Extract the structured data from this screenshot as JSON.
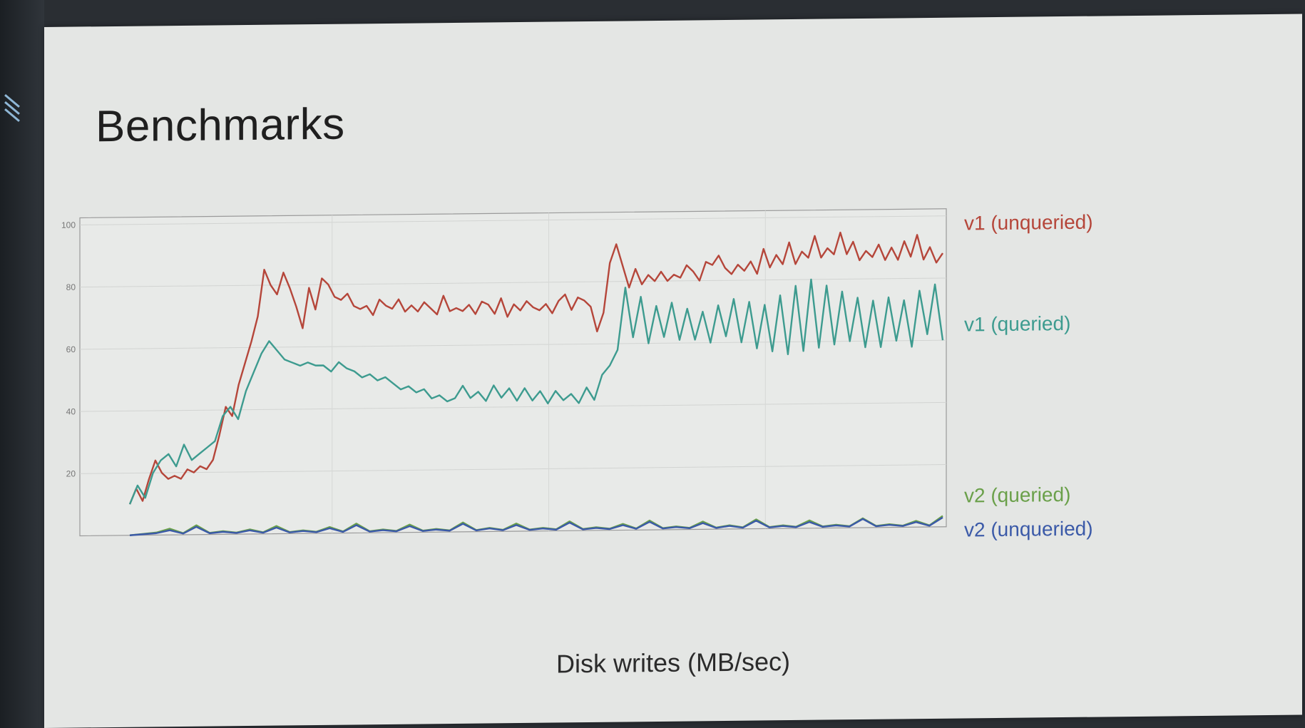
{
  "slide": {
    "title": "Benchmarks",
    "caption": "Disk writes (MB/sec)"
  },
  "chart_data": {
    "type": "line",
    "title": "Benchmarks",
    "xlabel": "Disk writes (MB/sec)",
    "ylabel": "",
    "ylim": [
      0,
      100
    ],
    "y_ticks": [
      "100",
      "80",
      "60",
      "40",
      "20"
    ],
    "grid": true,
    "legend_placement": "right",
    "series": [
      {
        "name": "v1 (unqueried)",
        "color": "#b5463a",
        "values": [
          10,
          15,
          11,
          18,
          24,
          20,
          18,
          19,
          18,
          21,
          20,
          22,
          21,
          24,
          32,
          41,
          38,
          48,
          55,
          62,
          70,
          85,
          80,
          77,
          84,
          79,
          73,
          66,
          79,
          72,
          82,
          80,
          76,
          75,
          77,
          73,
          72,
          73,
          70,
          75,
          73,
          72,
          75,
          71,
          73,
          71,
          74,
          72,
          70,
          76,
          71,
          72,
          71,
          73,
          70,
          74,
          73,
          70,
          75,
          69,
          73,
          71,
          74,
          72,
          71,
          73,
          70,
          74,
          76,
          71,
          75,
          74,
          72,
          64,
          70,
          86,
          92,
          85,
          78,
          84,
          79,
          82,
          80,
          83,
          80,
          82,
          81,
          85,
          83,
          80,
          86,
          85,
          88,
          84,
          82,
          85,
          83,
          86,
          82,
          90,
          84,
          88,
          85,
          92,
          85,
          89,
          87,
          94,
          87,
          90,
          88,
          95,
          88,
          92,
          86,
          89,
          87,
          91,
          86,
          90,
          86,
          92,
          87,
          94,
          86,
          90,
          85,
          88
        ],
        "point_interval_note": ""
      },
      {
        "name": "v1 (queried)",
        "color": "#3d9b8f",
        "values": [
          10,
          16,
          12,
          20,
          24,
          26,
          22,
          29,
          24,
          26,
          28,
          30,
          38,
          41,
          37,
          46,
          52,
          58,
          62,
          59,
          56,
          55,
          54,
          55,
          54,
          54,
          52,
          55,
          53,
          52,
          50,
          51,
          49,
          50,
          48,
          46,
          47,
          45,
          46,
          43,
          44,
          42,
          43,
          47,
          43,
          45,
          42,
          47,
          43,
          46,
          42,
          46,
          42,
          45,
          41,
          45,
          42,
          44,
          41,
          46,
          42,
          50,
          53,
          58,
          78,
          62,
          75,
          60,
          72,
          62,
          73,
          61,
          71,
          61,
          70,
          60,
          72,
          62,
          74,
          60,
          73,
          58,
          72,
          57,
          75,
          56,
          78,
          57,
          80,
          58,
          78,
          59,
          76,
          60,
          74,
          58,
          73,
          58,
          74,
          60,
          73,
          58,
          76,
          62,
          78,
          60
        ],
        "point_interval_note": ""
      },
      {
        "name": "v2 (queried)",
        "color": "#6aa04a",
        "values": [
          0,
          0.4,
          0.8,
          2,
          0.5,
          3,
          0.5,
          1,
          0.5,
          1.5,
          0.5,
          2.5,
          0.5,
          1,
          0.5,
          2,
          0.5,
          3,
          0.5,
          1,
          0.5,
          2.5,
          0.5,
          1,
          0.5,
          3,
          0.5,
          1.2,
          0.5,
          2.5,
          0.5,
          1,
          0.5,
          3,
          0.5,
          1,
          0.5,
          2,
          0.5,
          3,
          0.5,
          1,
          0.5,
          2.5,
          0.5,
          1.2,
          0.5,
          3,
          0.5,
          1,
          0.5,
          2.5,
          0.5,
          1,
          0.5,
          3,
          0.5,
          1,
          0.5,
          2,
          0.5,
          3.5
        ],
        "point_interval_note": ""
      },
      {
        "name": "v2 (unqueried)",
        "color": "#3b5aa8",
        "values": [
          0,
          0.3,
          0.6,
          1.5,
          0.4,
          2.5,
          0.4,
          0.8,
          0.4,
          1.2,
          0.4,
          2,
          0.4,
          0.8,
          0.4,
          1.6,
          0.4,
          2.5,
          0.4,
          0.8,
          0.4,
          2,
          0.4,
          0.8,
          0.4,
          2.6,
          0.4,
          1,
          0.4,
          2,
          0.4,
          0.8,
          0.4,
          2.6,
          0.4,
          0.8,
          0.4,
          1.6,
          0.4,
          2.6,
          0.4,
          0.8,
          0.4,
          2,
          0.4,
          1,
          0.4,
          2.6,
          0.4,
          0.8,
          0.4,
          2,
          0.4,
          0.8,
          0.4,
          2.8,
          0.4,
          0.8,
          0.4,
          1.6,
          0.4,
          3
        ]
      }
    ]
  },
  "edge": {
    "decor": "slash-icon"
  }
}
